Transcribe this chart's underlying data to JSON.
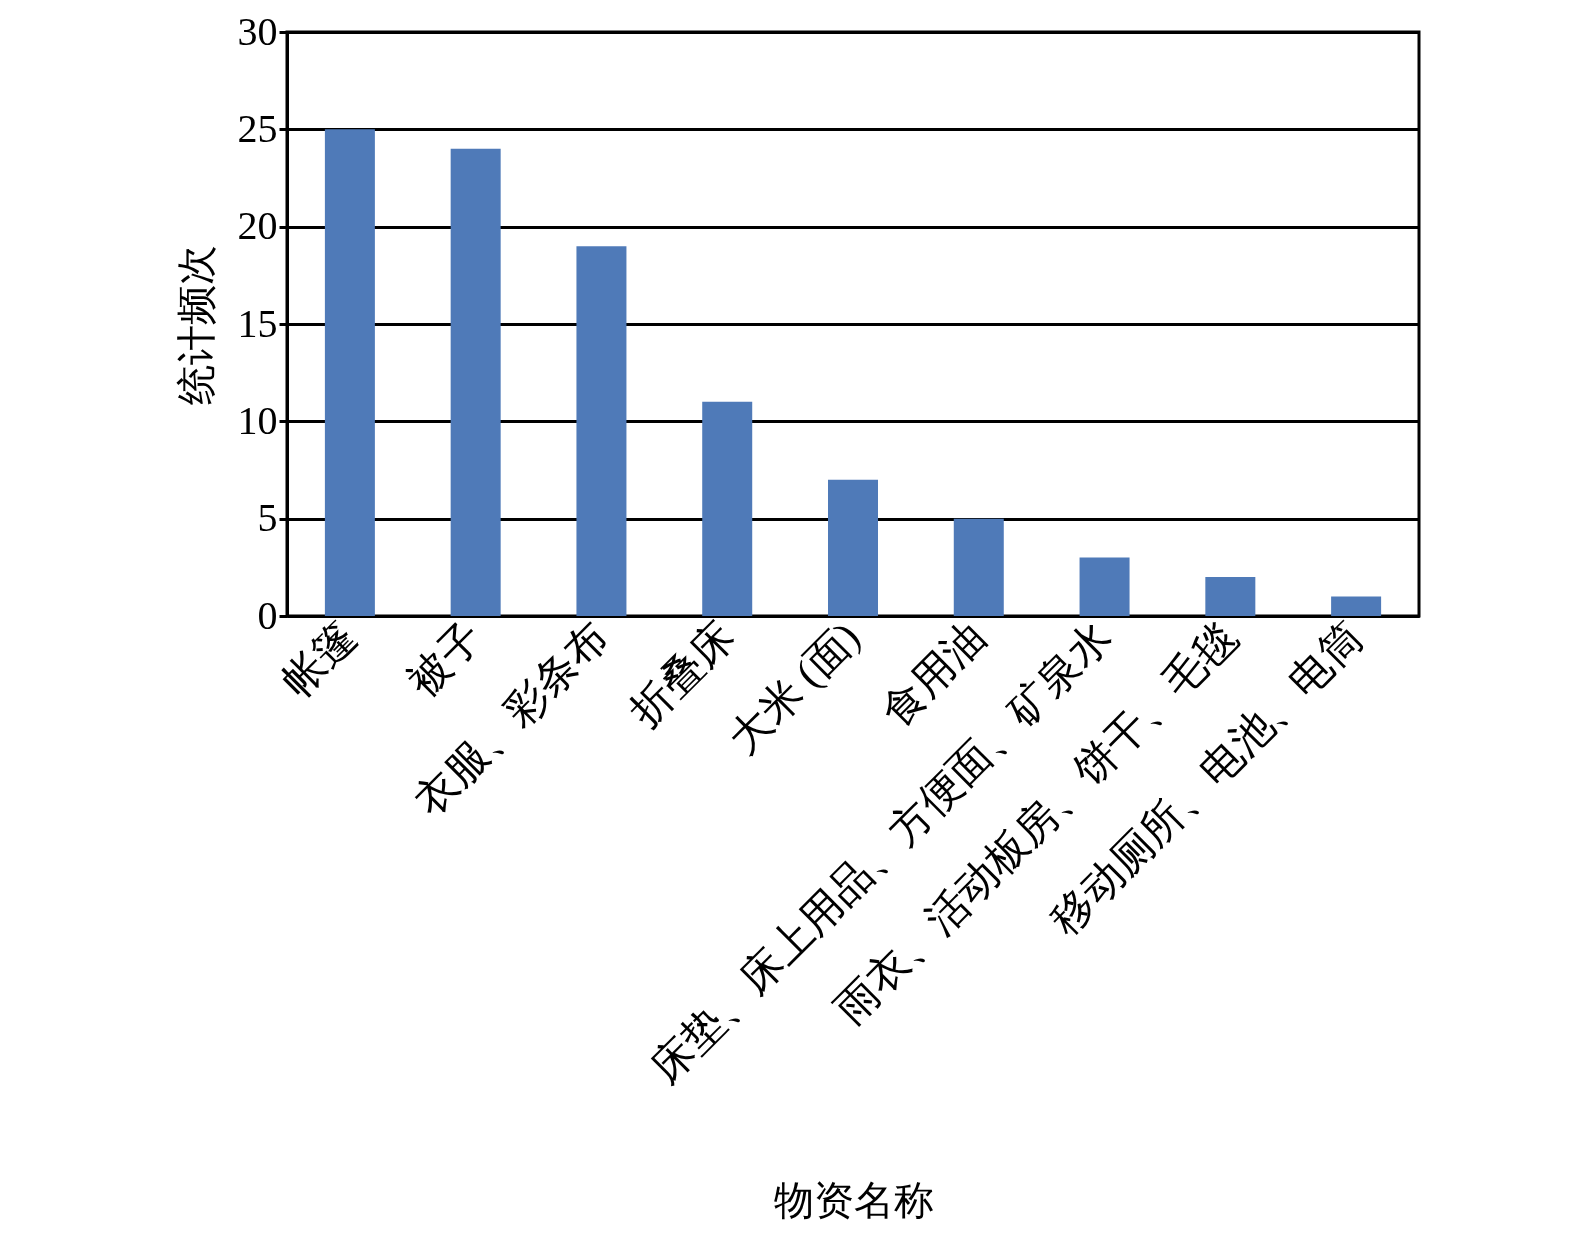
{
  "chart_data": {
    "type": "bar",
    "xlabel": "物资名称",
    "ylabel": "统计频次",
    "categories": [
      "帐篷",
      "被子",
      "衣服、彩条布",
      "折叠床",
      "大米 (面)",
      "食用油",
      "床垫、床上用品、方便面、矿泉水",
      "雨衣、活动板房、饼干、毛毯",
      "移动厕所、电池、电筒"
    ],
    "values": [
      25,
      24,
      19,
      11,
      7,
      5,
      3,
      2,
      1
    ],
    "color": "#4f7ab8",
    "ylim": [
      0,
      30
    ],
    "yticks": [
      0,
      5,
      10,
      15,
      20,
      25,
      30
    ],
    "grid": "y"
  }
}
